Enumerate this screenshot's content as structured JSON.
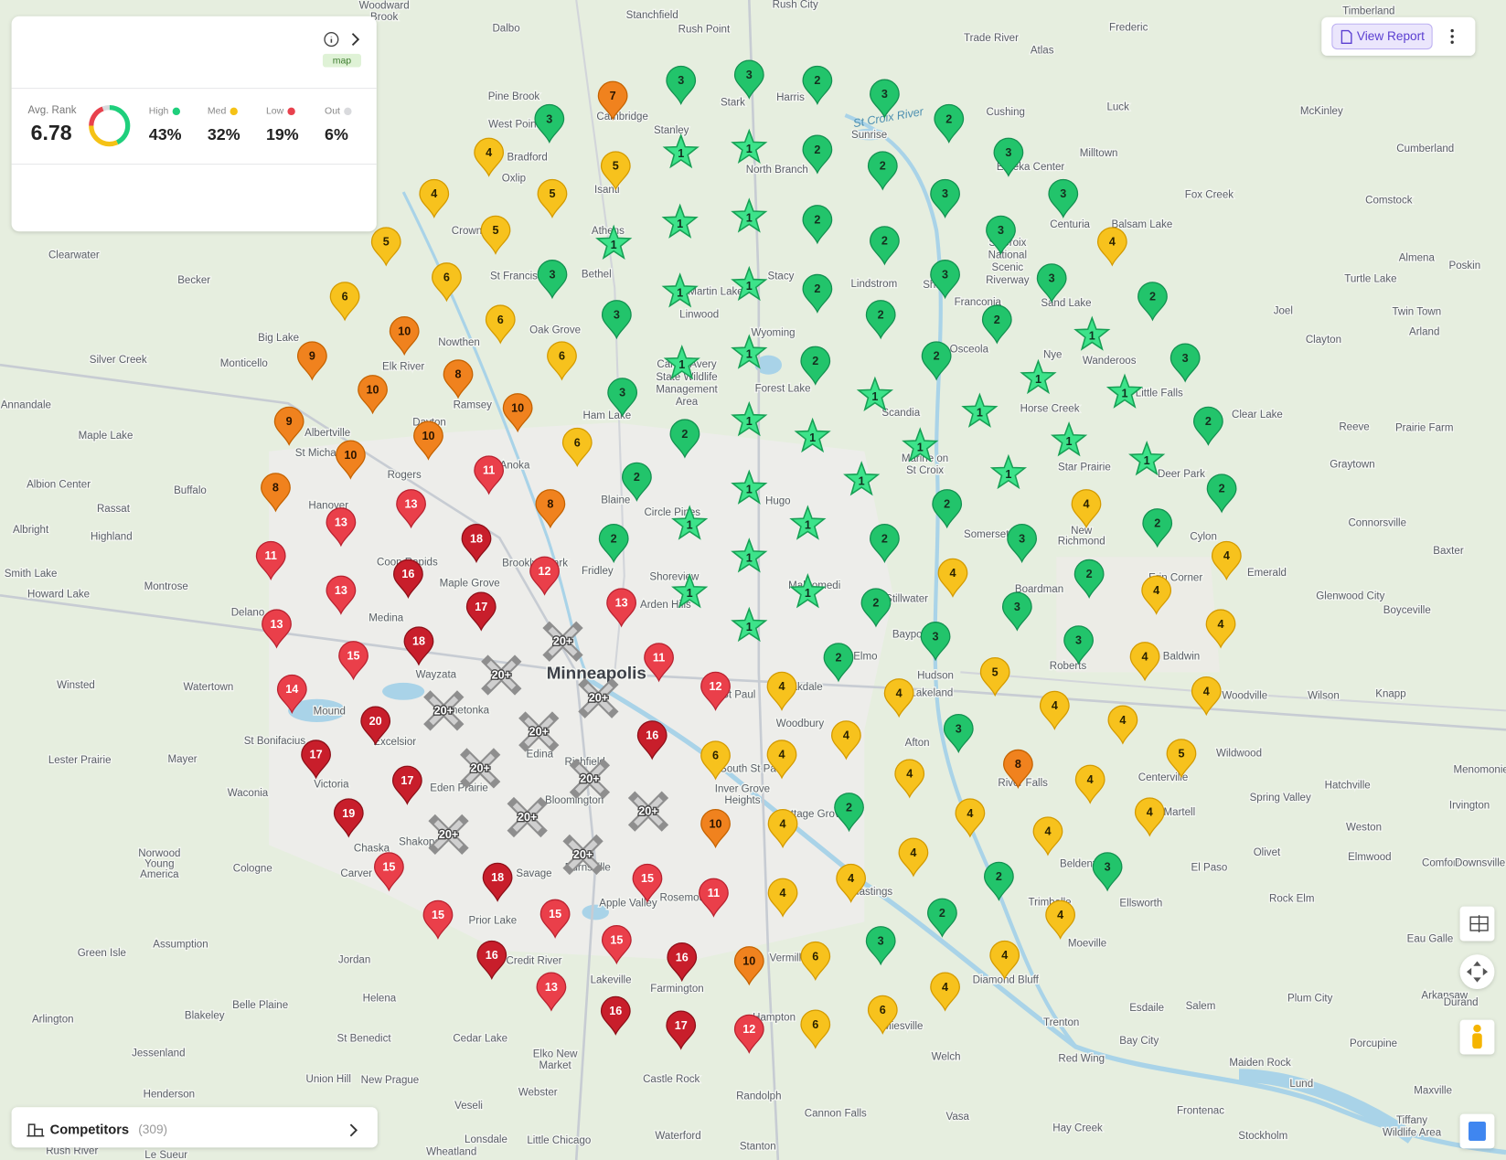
{
  "summary": {
    "avg_rank_label": "Avg. Rank",
    "avg_rank": 6.78,
    "tag": "map",
    "stats": [
      {
        "name": "High",
        "value": 43,
        "label": "43%",
        "color": "#1fcf7c"
      },
      {
        "name": "Med",
        "value": 32,
        "label": "32%",
        "color": "#f5c216"
      },
      {
        "name": "Low",
        "value": 19,
        "label": "19%",
        "color": "#e8414d"
      },
      {
        "name": "Out",
        "value": 6,
        "label": "6%",
        "color": "#d9dadd"
      }
    ]
  },
  "button": "View Report",
  "competitors": {
    "label": "Competitors",
    "count": "(309)"
  },
  "map_labels": {
    "city": "Minneapolis",
    "river": "St Croix River"
  },
  "places": [
    "Woodward",
    "Brook",
    "Rush City",
    "Stanchfield",
    "Dalbo",
    "Rush Point",
    "Trade River",
    "Atlas",
    "Frederic",
    "Timberland",
    "Harris",
    "Stark",
    "Pine Brook",
    "West Point",
    "Cambridge",
    "Stanley",
    "Sunrise",
    "Cushing",
    "Luck",
    "McKinley",
    "Bradford",
    "North Branch",
    "Milltown",
    "Eureka Center",
    "Cumberland",
    "Oxlip",
    "Isanti",
    "Fox Creek",
    "Comstock",
    "Athens",
    "Crown",
    "Centuria",
    "Balsam Lake",
    "Clearwater",
    "Becker",
    "St Francis",
    "Bethel",
    "Stacy",
    "Lindstrom",
    "Shafer",
    "St Croix",
    "National",
    "Scenic",
    "Riverway",
    "Sand Lake",
    "Almena",
    "Poskin",
    "Turtle Lake",
    "Martin Lake",
    "Linwood",
    "Franconia",
    "Joel",
    "Twin Town",
    "Arland",
    "Big Lake",
    "Oak Grove",
    "Wyoming",
    "Nowthen",
    "Clayton",
    "Monticello",
    "Silver Creek",
    "Elk River",
    "Osceola",
    "Nye",
    "Wanderoos",
    "Carlos Avery",
    "State Wildlife",
    "Management",
    "Area",
    "Forest Lake",
    "Ramsey",
    "Annandale",
    "Scandia",
    "Horse Creek",
    "Little Falls",
    "Clear Lake",
    "Reeve",
    "Prairie Farm",
    "Maple Lake",
    "Ham Lake",
    "Albertville",
    "Dayton",
    "Anoka",
    "St Michael",
    "Marine on",
    "St Croix",
    "Star Prairie",
    "Deer Park",
    "Graytown",
    "Albion Center",
    "Buffalo",
    "Rogers",
    "Blaine",
    "Rassat",
    "Hanover",
    "Hugo",
    "Circle Pines",
    "Albright",
    "Highland",
    "Somerset",
    "New",
    "Richmond",
    "Cylon",
    "Connorsville",
    "Baxter",
    "Brooklyn Park",
    "Fridley",
    "Coon Rapids",
    "Smith Lake",
    "Montrose",
    "Maple Grove",
    "Shoreview",
    "Mahtomedi",
    "Howard Lake",
    "Boardman",
    "Erin Corner",
    "Emerald",
    "Glenwood City",
    "Stillwater",
    "Arden Hills",
    "Delano",
    "Medina",
    "Boyceville",
    "Elmo",
    "Bayport",
    "Hudson",
    "Roberts",
    "Baldwin",
    "Wayzata",
    "Oakdale",
    "Lakeland",
    "Woodville",
    "Wilson",
    "Knapp",
    "Winsted",
    "Watertown",
    "St Paul",
    "Minnetonka",
    "Mound",
    "Woodbury",
    "Afton",
    "Wildwood",
    "St Bonifacius",
    "Excelsior",
    "Edina",
    "Lester Prairie",
    "Mayer",
    "Richfield",
    "South St Paul",
    "River Falls",
    "Centerville",
    "Hatchville",
    "Menomonie",
    "Victoria",
    "Eden Prairie",
    "Bloomington",
    "Inver Grove",
    "Heights",
    "Waconia",
    "Spring Valley",
    "Irvington",
    "Cottage Grove",
    "Martell",
    "Weston",
    "Shakopee",
    "Chaska",
    "Norwood",
    "Young",
    "America",
    "Cologne",
    "Olivet",
    "Elmwood",
    "Comfort",
    "Downsville",
    "Carver",
    "Savage",
    "Burnsville",
    "Beldenville",
    "Ellsworth",
    "El Paso",
    "Hastings",
    "Rosemount",
    "Apple Valley",
    "Prior Lake",
    "Trimbelle",
    "Rock Elm",
    "Assumption",
    "Green Isle",
    "Credit River",
    "Vermillion",
    "Moeville",
    "Eau Galle",
    "Arkansaw",
    "Durand",
    "Jordan",
    "Diamond Bluff",
    "Lakeville",
    "Farmington",
    "Plum City",
    "Belle Plaine",
    "Helena",
    "Esdaile",
    "Salem",
    "Arlington",
    "Blakeley",
    "Hampton",
    "Miesville",
    "Trenton",
    "St Benedict",
    "Cedar Lake",
    "Bay City",
    "Porcupine",
    "Jessenland",
    "Elko New",
    "Market",
    "Welch",
    "Red Wing",
    "Maiden Rock",
    "Union Hill",
    "New Prague",
    "Castle Rock",
    "Lund",
    "Henderson",
    "Webster",
    "Randolph",
    "Maxville",
    "Veseli",
    "Cannon Falls",
    "Vasa",
    "Frontenac",
    "Tiffany",
    "Wildlife Area",
    "Lonsdale",
    "Little Chicago",
    "Waterford",
    "Stanton",
    "Hay Creek",
    "Stockholm",
    "Rush River",
    "Le Sueur",
    "Wheatland"
  ],
  "markers": [
    7,
    3,
    3,
    2,
    3,
    3,
    2,
    4,
    5,
    1,
    1,
    2,
    2,
    3,
    4,
    5,
    3,
    3,
    5,
    1,
    1,
    1,
    2,
    2,
    3,
    4,
    5,
    6,
    3,
    1,
    1,
    2,
    3,
    3,
    2,
    6,
    6,
    3,
    2,
    2,
    10,
    1,
    9,
    6,
    1,
    1,
    2,
    2,
    1,
    3,
    10,
    8,
    3,
    1,
    1,
    1,
    9,
    10,
    10,
    6,
    2,
    1,
    1,
    1,
    1,
    2,
    10,
    11,
    2,
    1,
    1,
    1,
    8,
    13,
    8,
    1,
    2,
    4,
    2,
    13,
    18,
    2,
    1,
    1,
    2,
    3,
    2,
    11,
    16,
    12,
    1,
    4,
    2,
    4,
    13,
    17,
    13,
    1,
    1,
    2,
    3,
    4,
    13,
    18,
    "20+",
    1,
    3,
    3,
    4,
    15,
    11,
    2,
    4,
    "20+",
    14,
    "20+",
    12,
    4,
    4,
    5,
    4,
    "20+",
    20,
    4,
    4,
    3,
    "20+",
    16,
    17,
    6,
    4,
    4,
    5,
    "20+",
    17,
    "20+",
    4,
    8,
    4,
    19,
    "20+",
    "20+",
    2,
    4,
    4,
    10,
    4,
    "20+",
    4,
    "20+",
    4,
    15,
    18,
    15,
    4,
    2,
    3,
    11,
    4,
    15,
    15,
    2,
    4,
    3,
    15,
    16,
    16,
    10,
    6,
    4,
    13,
    4,
    16,
    6,
    17,
    12,
    6
  ]
}
